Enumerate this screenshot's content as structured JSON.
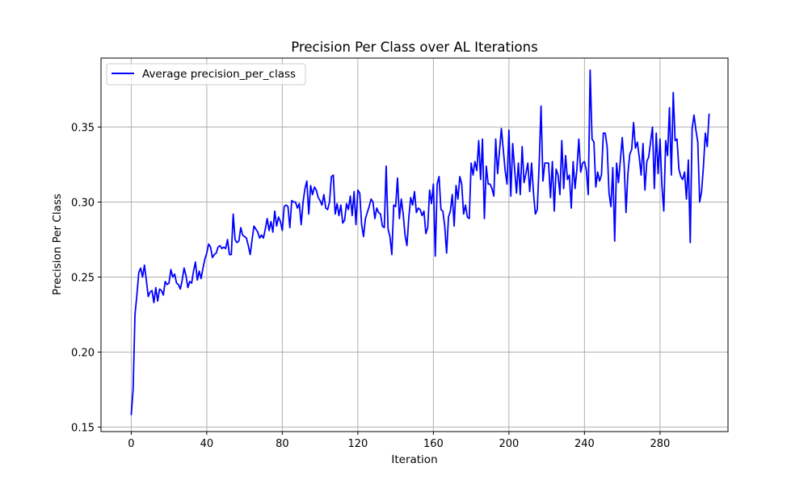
{
  "chart_data": {
    "type": "line",
    "title": "Precision Per Class over AL Iterations",
    "xlabel": "Iteration",
    "ylabel": "Precision Per Class",
    "xlim": [
      -16,
      316
    ],
    "ylim": [
      0.147,
      0.396
    ],
    "xticks": [
      0,
      40,
      80,
      120,
      160,
      200,
      240,
      280
    ],
    "xtick_labels": [
      "0",
      "40",
      "80",
      "120",
      "160",
      "200",
      "240",
      "280"
    ],
    "yticks": [
      0.15,
      0.2,
      0.25,
      0.3,
      0.35
    ],
    "ytick_labels": [
      "0.15",
      "0.20",
      "0.25",
      "0.30",
      "0.35"
    ],
    "grid": true,
    "legend_position": "upper-left",
    "series": [
      {
        "name": "Average precision_per_class",
        "color": "#0000ff",
        "x_start": 0,
        "x_step": 1,
        "values": [
          0.158,
          0.175,
          0.225,
          0.238,
          0.253,
          0.256,
          0.25,
          0.258,
          0.248,
          0.237,
          0.24,
          0.241,
          0.233,
          0.243,
          0.234,
          0.242,
          0.241,
          0.238,
          0.247,
          0.245,
          0.246,
          0.255,
          0.25,
          0.252,
          0.246,
          0.245,
          0.242,
          0.248,
          0.256,
          0.251,
          0.243,
          0.247,
          0.246,
          0.254,
          0.26,
          0.248,
          0.254,
          0.249,
          0.256,
          0.262,
          0.266,
          0.272,
          0.27,
          0.263,
          0.265,
          0.266,
          0.27,
          0.271,
          0.269,
          0.27,
          0.269,
          0.275,
          0.265,
          0.265,
          0.292,
          0.275,
          0.273,
          0.274,
          0.283,
          0.278,
          0.277,
          0.276,
          0.271,
          0.265,
          0.275,
          0.284,
          0.282,
          0.28,
          0.276,
          0.278,
          0.276,
          0.282,
          0.289,
          0.281,
          0.287,
          0.28,
          0.294,
          0.284,
          0.29,
          0.287,
          0.281,
          0.297,
          0.298,
          0.297,
          0.283,
          0.301,
          0.3,
          0.3,
          0.296,
          0.299,
          0.285,
          0.3,
          0.309,
          0.314,
          0.292,
          0.311,
          0.305,
          0.31,
          0.308,
          0.303,
          0.301,
          0.298,
          0.305,
          0.296,
          0.295,
          0.3,
          0.317,
          0.318,
          0.292,
          0.299,
          0.291,
          0.298,
          0.286,
          0.288,
          0.299,
          0.295,
          0.304,
          0.291,
          0.307,
          0.285,
          0.308,
          0.306,
          0.285,
          0.277,
          0.289,
          0.293,
          0.297,
          0.302,
          0.3,
          0.289,
          0.296,
          0.293,
          0.292,
          0.284,
          0.283,
          0.324,
          0.282,
          0.277,
          0.265,
          0.298,
          0.297,
          0.316,
          0.289,
          0.302,
          0.292,
          0.278,
          0.271,
          0.29,
          0.303,
          0.298,
          0.307,
          0.293,
          0.296,
          0.295,
          0.291,
          0.294,
          0.279,
          0.283,
          0.308,
          0.299,
          0.312,
          0.264,
          0.312,
          0.317,
          0.295,
          0.294,
          0.284,
          0.266,
          0.29,
          0.294,
          0.305,
          0.284,
          0.311,
          0.302,
          0.317,
          0.312,
          0.292,
          0.298,
          0.29,
          0.289,
          0.326,
          0.318,
          0.327,
          0.321,
          0.341,
          0.315,
          0.342,
          0.289,
          0.324,
          0.312,
          0.312,
          0.309,
          0.304,
          0.342,
          0.319,
          0.334,
          0.349,
          0.335,
          0.321,
          0.312,
          0.348,
          0.304,
          0.339,
          0.322,
          0.306,
          0.326,
          0.305,
          0.337,
          0.313,
          0.319,
          0.326,
          0.307,
          0.326,
          0.306,
          0.292,
          0.295,
          0.325,
          0.364,
          0.314,
          0.326,
          0.326,
          0.326,
          0.303,
          0.327,
          0.294,
          0.322,
          0.318,
          0.305,
          0.341,
          0.309,
          0.331,
          0.315,
          0.318,
          0.296,
          0.327,
          0.309,
          0.322,
          0.342,
          0.32,
          0.326,
          0.327,
          0.321,
          0.305,
          0.388,
          0.342,
          0.34,
          0.31,
          0.32,
          0.314,
          0.318,
          0.346,
          0.346,
          0.337,
          0.306,
          0.297,
          0.323,
          0.274,
          0.326,
          0.313,
          0.328,
          0.343,
          0.325,
          0.293,
          0.319,
          0.332,
          0.335,
          0.353,
          0.336,
          0.34,
          0.33,
          0.318,
          0.339,
          0.308,
          0.327,
          0.33,
          0.34,
          0.35,
          0.309,
          0.346,
          0.319,
          0.342,
          0.311,
          0.294,
          0.341,
          0.331,
          0.363,
          0.318,
          0.373,
          0.341,
          0.342,
          0.322,
          0.317,
          0.315,
          0.32,
          0.302,
          0.328,
          0.273,
          0.349,
          0.358,
          0.348,
          0.34,
          0.3,
          0.307,
          0.324,
          0.346,
          0.337,
          0.359
        ]
      }
    ]
  }
}
